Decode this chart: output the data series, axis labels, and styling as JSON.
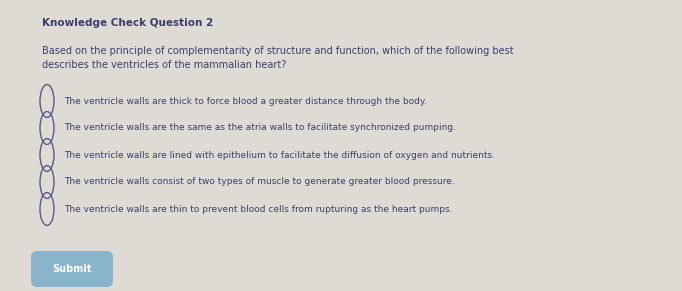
{
  "bg_color": "#dedad4",
  "title": "Knowledge Check Question 2",
  "title_fontsize": 7.5,
  "title_color": "#3d3d6b",
  "title_bold": true,
  "question": "Based on the principle of complementarity of structure and function, which of the following best\ndescribes the ventricles of the mammalian heart?",
  "question_fontsize": 7.0,
  "question_color": "#3d3d6b",
  "options": [
    "The ventricle walls are thick to force blood a greater distance through the body.",
    "The ventricle walls are the same as the atria walls to facilitate synchronized pumping.",
    "The ventricle walls are lined with epithelium to facilitate the diffusion of oxygen and nutrients.",
    "The ventricle walls consist of two types of muscle to generate greater blood pressure.",
    "The ventricle walls are thin to prevent blood cells from rupturing as the heart pumps."
  ],
  "option_fontsize": 6.5,
  "option_color": "#3d3d6b",
  "circle_edge_color": "#5a5a8a",
  "circle_lw": 1.0,
  "submit_text": "Submit",
  "submit_bg": "#8ab4cc",
  "submit_text_color": "#ffffff",
  "submit_fontsize": 7.0,
  "fig_width": 6.82,
  "fig_height": 2.91,
  "dpi": 100
}
